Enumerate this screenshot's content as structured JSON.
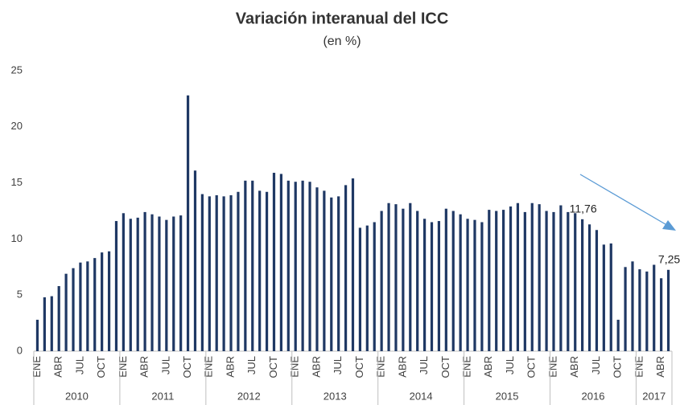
{
  "chart_data": {
    "type": "bar",
    "title": "Variación interanual del ICC",
    "subtitle": "(en %)",
    "categories": [
      "ENE",
      null,
      null,
      "ABR",
      null,
      null,
      "JUL",
      null,
      null,
      "OCT",
      null,
      null,
      "ENE",
      null,
      null,
      "ABR",
      null,
      null,
      "JUL",
      null,
      null,
      "OCT",
      null,
      null,
      "ENE",
      null,
      null,
      "ABR",
      null,
      null,
      "JUL",
      null,
      null,
      "OCT",
      null,
      null,
      "ENE",
      null,
      null,
      "ABR",
      null,
      null,
      "JUL",
      null,
      null,
      "OCT",
      null,
      null,
      "ENE",
      null,
      null,
      "ABR",
      null,
      null,
      "JUL",
      null,
      null,
      "OCT",
      null,
      null,
      "ENE",
      null,
      null,
      "ABR",
      null,
      null,
      "JUL",
      null,
      null,
      "OCT",
      null,
      null,
      "ENE",
      null,
      null,
      "ABR",
      null,
      null,
      "JUL",
      null,
      null,
      "OCT",
      null,
      null,
      "ENE",
      null,
      null,
      "ABR",
      null
    ],
    "years": [
      "2010",
      "2011",
      "2012",
      "2013",
      "2014",
      "2015",
      "2016",
      "2017"
    ],
    "values": [
      2.8,
      4.8,
      4.9,
      5.8,
      6.9,
      7.4,
      7.9,
      8.0,
      8.3,
      8.8,
      8.9,
      11.6,
      12.3,
      11.8,
      11.9,
      12.4,
      12.2,
      12.0,
      11.7,
      12.0,
      12.1,
      22.8,
      16.1,
      14.0,
      13.8,
      13.9,
      13.8,
      13.9,
      14.2,
      15.2,
      15.2,
      14.3,
      14.2,
      15.9,
      15.8,
      15.2,
      15.1,
      15.2,
      15.1,
      14.6,
      14.3,
      13.7,
      13.8,
      14.8,
      15.4,
      11.0,
      11.2,
      11.5,
      12.5,
      13.2,
      13.1,
      12.7,
      13.2,
      12.5,
      11.8,
      11.5,
      11.6,
      12.7,
      12.5,
      12.2,
      11.8,
      11.7,
      11.5,
      12.6,
      12.5,
      12.6,
      12.9,
      13.2,
      12.4,
      13.2,
      13.1,
      12.5,
      12.4,
      13.0,
      12.4,
      12.3,
      11.76,
      11.3,
      10.8,
      9.5,
      9.6,
      2.8,
      7.5,
      8.0,
      7.3,
      7.1,
      7.7,
      6.5,
      7.25
    ],
    "value_labels": [
      null,
      null,
      null,
      null,
      null,
      null,
      null,
      null,
      null,
      null,
      null,
      null,
      null,
      null,
      null,
      null,
      null,
      null,
      null,
      null,
      null,
      null,
      null,
      null,
      null,
      null,
      null,
      null,
      null,
      null,
      null,
      null,
      null,
      null,
      null,
      null,
      null,
      null,
      null,
      null,
      null,
      null,
      null,
      null,
      null,
      null,
      null,
      null,
      null,
      null,
      null,
      null,
      null,
      null,
      null,
      null,
      null,
      null,
      null,
      null,
      null,
      null,
      null,
      null,
      null,
      null,
      null,
      null,
      null,
      null,
      null,
      null,
      null,
      null,
      null,
      null,
      "11,76",
      null,
      null,
      null,
      null,
      null,
      null,
      null,
      null,
      null,
      null,
      null,
      "7,25"
    ],
    "color": "#1f3864",
    "ylim": [
      0,
      25
    ],
    "yticks": [
      0,
      5,
      10,
      15,
      20,
      25
    ],
    "grid": false
  }
}
